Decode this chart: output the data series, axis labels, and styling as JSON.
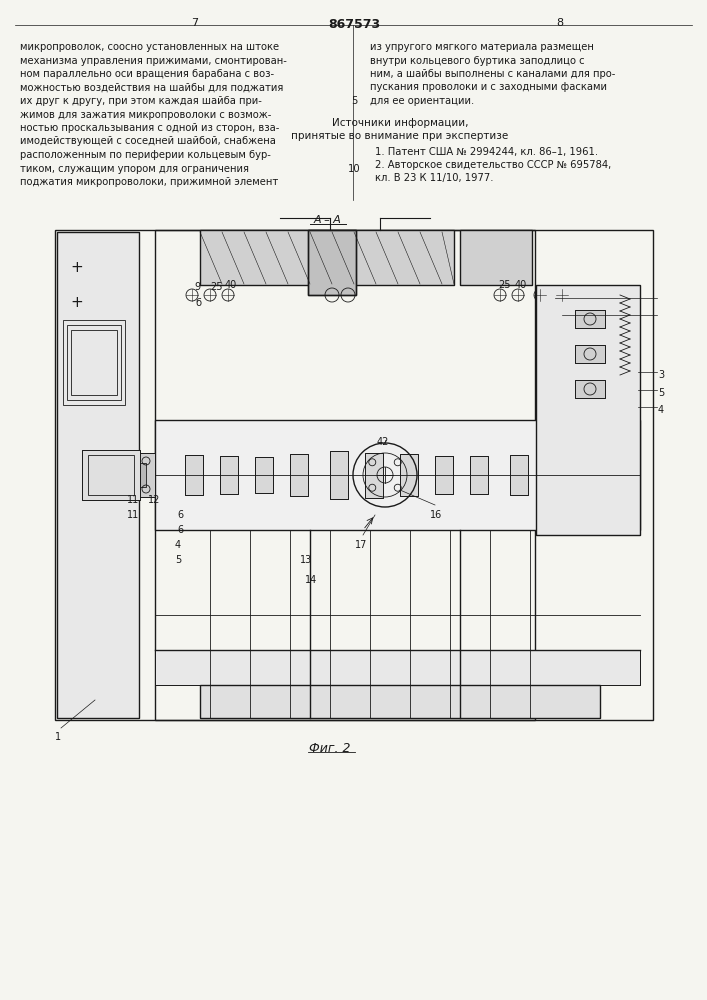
{
  "page_number_left": "7",
  "page_number_right": "8",
  "patent_number": "867573",
  "left_text": [
    "микропроволок, соосно установленных на штоке",
    "механизма управления прижимами, смонтирован-",
    "ном параллельно оси вращения барабана с воз-",
    "можностью воздействия на шайбы для поджатия",
    "их друг к другу, при этом каждая шайба при-",
    "жимов для зажатия микропроволоки с возмож-",
    "ностью проскальзывания с одной из сторон, вза-",
    "имодействующей с соседней шайбой, снабжена",
    "расположенным по периферии кольцевым бур-",
    "тиком, служащим упором для ограничения",
    "поджатия микропроволоки, прижимной элемент"
  ],
  "right_text": [
    "из упругого мягкого материала размещен",
    "внутри кольцевого буртика заподлицо с",
    "ним, а шайбы выполнены с каналами для про-",
    "пускания проволоки и с заходными фасками",
    "для ее ориентации."
  ],
  "line_number_5": "5",
  "line_number_10": "10",
  "sources_header": "Источники информации,",
  "sources_subheader": "принятые во внимание при экспертизе",
  "source1": "1. Патент США № 2994244, кл. 86–1, 1961.",
  "source2": "2. Авторское свидетельство СССР № 695784,",
  "source2b": "кл. В 23 К 11/10, 1977.",
  "section_label": "А – А",
  "fig_label": "Фиг. 2",
  "bg_color": "#f5f5f0",
  "drawing_color": "#1a1a1a",
  "text_color": "#1a1a1a"
}
